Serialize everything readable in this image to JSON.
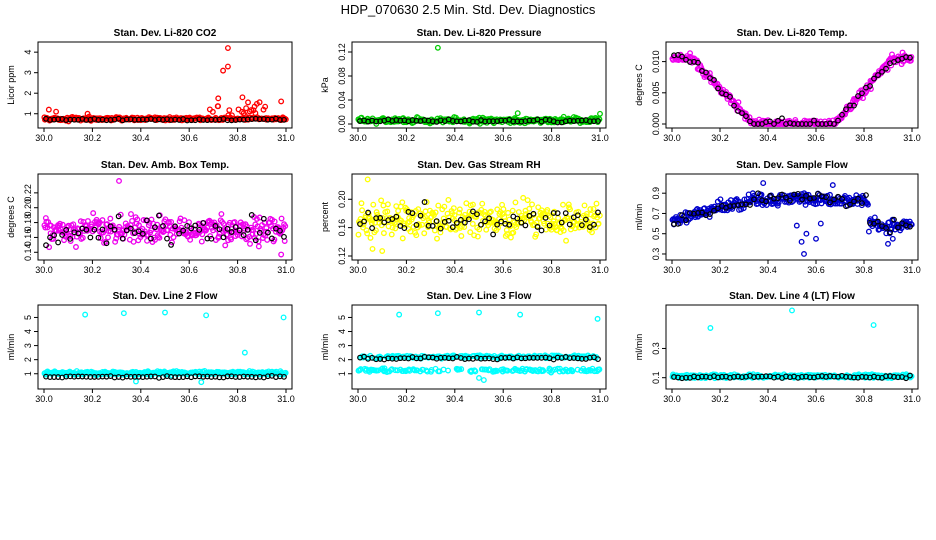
{
  "page": {
    "title": "HDP_070630  2.5 Min. Std. Dev. Diagnostics"
  },
  "chart_data": [
    {
      "type": "scatter",
      "title": "Stan. Dev. Li-820 CO2",
      "ylabel": "Licor ppm",
      "xlabel": "",
      "xlim": [
        30.0,
        31.0
      ],
      "ylim": [
        0.5,
        4.3
      ],
      "xticks": [
        "30.0",
        "30.2",
        "30.4",
        "30.6",
        "30.8",
        "31.0"
      ],
      "yticks": [
        "1",
        "2",
        "3",
        "4"
      ],
      "ytick_values": [
        1,
        2,
        3,
        4
      ],
      "colors": {
        "main": "#ff0000",
        "overlay": "#000000"
      },
      "profile": {
        "base": 0.75,
        "noise": 0.08,
        "overlay_base": 0.72,
        "overlay_noise": 0.04,
        "spike_base": 0.9,
        "spike_noise": 0.6
      },
      "outliers": [
        {
          "x": 30.76,
          "y": 4.2
        },
        {
          "x": 30.76,
          "y": 3.3
        },
        {
          "x": 30.74,
          "y": 3.1
        },
        {
          "x": 30.72,
          "y": 1.75
        },
        {
          "x": 30.82,
          "y": 1.8
        },
        {
          "x": 30.98,
          "y": 1.6
        },
        {
          "x": 30.02,
          "y": 1.2
        },
        {
          "x": 30.05,
          "y": 1.1
        },
        {
          "x": 30.18,
          "y": 1.0
        }
      ],
      "min_y_clip": 0.0
    },
    {
      "type": "scatter",
      "title": "Stan. Dev. Li-820 Pressure",
      "ylabel": "kPa",
      "xlabel": "",
      "xlim": [
        30.0,
        31.0
      ],
      "ylim": [
        0.0,
        0.13
      ],
      "xticks": [
        "30.0",
        "30.2",
        "30.4",
        "30.6",
        "30.8",
        "31.0"
      ],
      "yticks": [
        "0.00",
        "0.04",
        "0.08",
        "0.12"
      ],
      "ytick_values": [
        0.0,
        0.04,
        0.08,
        0.12
      ],
      "colors": {
        "main": "#00cc00",
        "overlay": "#000000"
      },
      "profile": {
        "base": 0.006,
        "noise": 0.004,
        "overlay_base": 0.005,
        "overlay_noise": 0.002
      },
      "outliers": [
        {
          "x": 30.33,
          "y": 0.127
        },
        {
          "x": 30.66,
          "y": 0.018
        },
        {
          "x": 31.0,
          "y": 0.017
        },
        {
          "x": 30.85,
          "y": 0.012
        }
      ],
      "min_y_clip": 0.0
    },
    {
      "type": "scatter",
      "title": "Stan. Dev. Li-820 Temp.",
      "ylabel": "degrees C",
      "xlabel": "",
      "xlim": [
        30.0,
        31.0
      ],
      "ylim": [
        0.0,
        0.0125
      ],
      "xticks": [
        "30.0",
        "30.2",
        "30.4",
        "30.6",
        "30.8",
        "31.0"
      ],
      "yticks": [
        "0.000",
        "0.005",
        "0.010"
      ],
      "ytick_values": [
        0.0,
        0.005,
        0.01
      ],
      "colors": {
        "main": "#ee00ee",
        "overlay": "#000000"
      },
      "profile": {
        "shape": "valley",
        "high": 0.0105,
        "low": 0.0,
        "down_start": 30.08,
        "down_end": 30.34,
        "up_start": 30.68,
        "up_end": 30.92,
        "noise": 0.0007
      },
      "outliers": [],
      "min_y_clip": 0.0
    },
    {
      "type": "scatter",
      "title": "Stan. Dev. Amb. Box Temp.",
      "ylabel": "degrees C",
      "xlabel": "",
      "xlim": [
        30.0,
        31.0
      ],
      "ylim": [
        0.135,
        0.24
      ],
      "xticks": [
        "30.0",
        "30.2",
        "30.4",
        "30.6",
        "30.8",
        "31.0"
      ],
      "yticks": [
        "0.14",
        "0.16",
        "0.18",
        "0.20",
        "0.22"
      ],
      "ytick_values": [
        0.14,
        0.16,
        0.18,
        0.2,
        0.22
      ],
      "colors": {
        "main": "#ee00ee",
        "overlay": "#000000"
      },
      "profile": {
        "base": 0.17,
        "noise": 0.018,
        "overlay_base": 0.17,
        "overlay_noise": 0.018
      },
      "outliers": [
        {
          "x": 30.31,
          "y": 0.236
        },
        {
          "x": 30.98,
          "y": 0.137
        }
      ],
      "min_y_clip": 0.0
    },
    {
      "type": "scatter",
      "title": "Stan. Dev. Gas Stream RH",
      "ylabel": "percent",
      "xlabel": "",
      "xlim": [
        30.0,
        31.0
      ],
      "ylim": [
        0.12,
        0.23
      ],
      "xticks": [
        "30.0",
        "30.2",
        "30.4",
        "30.6",
        "30.8",
        "31.0"
      ],
      "yticks": [
        "0.12",
        "0.16",
        "0.20"
      ],
      "ytick_values": [
        0.12,
        0.16,
        0.2
      ],
      "colors": {
        "main": "#ffff00",
        "overlay": "#000000"
      },
      "profile": {
        "base": 0.172,
        "noise": 0.022,
        "overlay_base": 0.172,
        "overlay_noise": 0.018
      },
      "outliers": [
        {
          "x": 30.04,
          "y": 0.228
        },
        {
          "x": 30.06,
          "y": 0.13
        },
        {
          "x": 30.1,
          "y": 0.127
        }
      ],
      "min_y_clip": 0.0
    },
    {
      "type": "scatter",
      "title": "Stan. Dev. Sample Flow",
      "ylabel": "ml/min",
      "xlabel": "",
      "xlim": [
        30.0,
        31.0
      ],
      "ylim": [
        0.28,
        1.05
      ],
      "xticks": [
        "30.0",
        "30.2",
        "30.4",
        "30.6",
        "30.8",
        "31.0"
      ],
      "yticks": [
        "0.3",
        "0.5",
        "0.7",
        "0.9"
      ],
      "ytick_values": [
        0.3,
        0.5,
        0.7,
        0.9
      ],
      "colors": {
        "main": "#0000cc",
        "overlay": "#000000"
      },
      "profile": {
        "shape": "dome",
        "start": 0.62,
        "peak": 0.85,
        "end": 0.58,
        "peak_x": 30.5,
        "drop_x": 30.82,
        "noise": 0.06
      },
      "outliers": [
        {
          "x": 30.55,
          "y": 0.3
        },
        {
          "x": 30.54,
          "y": 0.42
        },
        {
          "x": 30.56,
          "y": 0.5
        },
        {
          "x": 30.52,
          "y": 0.58
        },
        {
          "x": 30.6,
          "y": 0.45
        },
        {
          "x": 30.62,
          "y": 0.6
        },
        {
          "x": 30.38,
          "y": 1.0
        },
        {
          "x": 30.67,
          "y": 0.98
        },
        {
          "x": 30.92,
          "y": 0.45
        },
        {
          "x": 30.9,
          "y": 0.4
        }
      ],
      "min_y_clip": 0.0
    },
    {
      "type": "scatter",
      "title": "Stan. Dev. Line 2 Flow",
      "ylabel": "ml/min",
      "xlabel": "",
      "xlim": [
        30.0,
        31.0
      ],
      "ylim": [
        0.2,
        5.6
      ],
      "xticks": [
        "30.0",
        "30.2",
        "30.4",
        "30.6",
        "30.8",
        "31.0"
      ],
      "yticks": [
        "1",
        "2",
        "3",
        "4",
        "5"
      ],
      "ytick_values": [
        1,
        2,
        3,
        4,
        5
      ],
      "colors": {
        "main": "#00ffff",
        "overlay": "#000000"
      },
      "profile": {
        "base": 1.05,
        "noise": 0.12,
        "overlay_base": 0.78,
        "overlay_noise": 0.06
      },
      "outliers": [
        {
          "x": 30.17,
          "y": 5.2
        },
        {
          "x": 30.33,
          "y": 5.3
        },
        {
          "x": 30.5,
          "y": 5.35
        },
        {
          "x": 30.67,
          "y": 5.15
        },
        {
          "x": 30.99,
          "y": 5.0
        },
        {
          "x": 30.83,
          "y": 2.5
        },
        {
          "x": 30.65,
          "y": 0.4
        },
        {
          "x": 30.38,
          "y": 0.45
        }
      ],
      "min_y_clip": 0.0
    },
    {
      "type": "scatter",
      "title": "Stan. Dev. Line 3 Flow",
      "ylabel": "ml/min",
      "xlabel": "",
      "xlim": [
        30.0,
        31.0
      ],
      "ylim": [
        0.2,
        5.6
      ],
      "xticks": [
        "30.0",
        "30.2",
        "30.4",
        "30.6",
        "30.8",
        "31.0"
      ],
      "yticks": [
        "1",
        "2",
        "3",
        "4",
        "5"
      ],
      "ytick_values": [
        1,
        2,
        3,
        4,
        5
      ],
      "colors": {
        "main": "#00ffff",
        "overlay": "#000000"
      },
      "profile": {
        "shape": "twoband",
        "upper": 2.2,
        "lower": 1.25,
        "noise": 0.12,
        "overlay_base": 2.1,
        "overlay_noise": 0.08
      },
      "outliers": [
        {
          "x": 30.17,
          "y": 5.2
        },
        {
          "x": 30.33,
          "y": 5.3
        },
        {
          "x": 30.5,
          "y": 5.35
        },
        {
          "x": 30.67,
          "y": 5.2
        },
        {
          "x": 30.99,
          "y": 4.9
        },
        {
          "x": 30.52,
          "y": 0.55
        },
        {
          "x": 30.5,
          "y": 0.7
        }
      ],
      "min_y_clip": 0.0
    },
    {
      "type": "scatter",
      "title": "Stan. Dev. Line 4 (LT) Flow",
      "ylabel": "ml/min",
      "xlabel": "",
      "xlim": [
        30.0,
        31.0
      ],
      "ylim": [
        0.05,
        0.57
      ],
      "xticks": [
        "30.0",
        "30.2",
        "30.4",
        "30.6",
        "30.8",
        "31.0"
      ],
      "yticks": [
        "0.1",
        "0.3"
      ],
      "ytick_values": [
        0.1,
        0.3
      ],
      "colors": {
        "main": "#00ffff",
        "overlay": "#000000"
      },
      "profile": {
        "base": 0.11,
        "noise": 0.012,
        "overlay_base": 0.105,
        "overlay_noise": 0.008
      },
      "outliers": [
        {
          "x": 30.16,
          "y": 0.44
        },
        {
          "x": 30.5,
          "y": 0.56
        },
        {
          "x": 30.84,
          "y": 0.46
        }
      ],
      "min_y_clip": 0.0
    }
  ]
}
